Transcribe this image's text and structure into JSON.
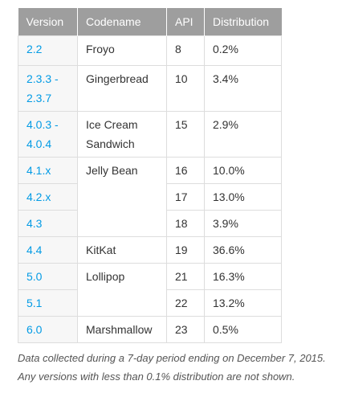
{
  "table": {
    "headers": {
      "version": "Version",
      "codename": "Codename",
      "api": "API",
      "distribution": "Distribution"
    },
    "rows": [
      {
        "version": "2.2",
        "codename": "Froyo",
        "api": "8",
        "distribution": "0.2%"
      },
      {
        "version_line1": "2.3.3 -",
        "version_line2": "2.3.7",
        "codename": "Gingerbread",
        "api": "10",
        "distribution": "3.4%"
      },
      {
        "version_line1": "4.0.3 -",
        "version_line2": "4.0.4",
        "codename_line1": "Ice Cream",
        "codename_line2": "Sandwich",
        "api": "15",
        "distribution": "2.9%"
      },
      {
        "version": "4.1.x",
        "codename": "Jelly Bean",
        "api": "16",
        "distribution": "10.0%"
      },
      {
        "version": "4.2.x",
        "api": "17",
        "distribution": "13.0%"
      },
      {
        "version": "4.3",
        "api": "18",
        "distribution": "3.9%"
      },
      {
        "version": "4.4",
        "codename": "KitKat",
        "api": "19",
        "distribution": "36.6%"
      },
      {
        "version": "5.0",
        "codename": "Lollipop",
        "api": "21",
        "distribution": "16.3%"
      },
      {
        "version": "5.1",
        "api": "22",
        "distribution": "13.2%"
      },
      {
        "version": "6.0",
        "codename": "Marshmallow",
        "api": "23",
        "distribution": "0.5%"
      }
    ]
  },
  "caption": {
    "line1": "Data collected during a 7-day period ending on December 7, 2015.",
    "line2": "Any versions with less than 0.1% distribution are not shown."
  },
  "colors": {
    "header_bg": "#9e9e9e",
    "link": "#039be5",
    "border": "#dddddd"
  }
}
